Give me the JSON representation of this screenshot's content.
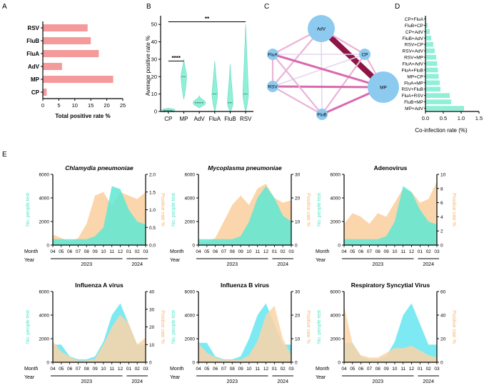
{
  "colors": {
    "bar": "#f59a9a",
    "violin": "#8ff0d8",
    "teal": "#5ee8d2",
    "orange": "#fbd3a7",
    "node": "#8dcaf0",
    "edgeStrong": "#8e1545",
    "edgeMid": "#d96aae",
    "edgeLight": "#ebb3d8",
    "edgeFaint": "#e4d6ee",
    "axis": "#000000"
  },
  "panels": {
    "A": "A",
    "B": "B",
    "C": "C",
    "D": "D",
    "E": "E"
  },
  "chart_data": [
    {
      "id": "A",
      "type": "bar",
      "orientation": "horizontal",
      "categories": [
        "RSV",
        "FluB",
        "FluA",
        "AdV",
        "MP",
        "CP"
      ],
      "values": [
        14,
        15,
        17.5,
        6,
        22,
        1.2
      ],
      "xlabel": "Total positive rate %",
      "xlim": [
        0,
        25
      ],
      "xticks": [
        "0",
        "5",
        "10",
        "15",
        "20",
        "25"
      ],
      "xtickValues": [
        0,
        5,
        10,
        15,
        20,
        25
      ]
    },
    {
      "id": "B",
      "type": "violin",
      "categories": [
        "CP",
        "MP",
        "AdV",
        "FluA",
        "FluB",
        "RSV"
      ],
      "ranges": [
        [
          0,
          2
        ],
        [
          7,
          30
        ],
        [
          2,
          9
        ],
        [
          0,
          29
        ],
        [
          0,
          27
        ],
        [
          0,
          50
        ]
      ],
      "medians": [
        0.5,
        20,
        5,
        10,
        5,
        10
      ],
      "ylabel": "Average positive rate %",
      "ylim": [
        0,
        55
      ],
      "yticks": [
        "0",
        "10",
        "20",
        "30",
        "40",
        "50"
      ],
      "ytickValues": [
        0,
        10,
        20,
        30,
        40,
        50
      ],
      "annotations": [
        {
          "label": "****",
          "from": "CP",
          "to": "MP"
        },
        {
          "label": "**",
          "from": "CP",
          "to": "RSV"
        }
      ]
    },
    {
      "id": "C",
      "type": "network",
      "nodes": [
        {
          "name": "AdV",
          "size": 3
        },
        {
          "name": "CP",
          "size": 1
        },
        {
          "name": "MP",
          "size": 4
        },
        {
          "name": "FluB",
          "size": 1
        },
        {
          "name": "RSV",
          "size": 1
        },
        {
          "name": "FluA",
          "size": 1
        }
      ],
      "edges": [
        {
          "from": "AdV",
          "to": "MP",
          "weight": 5
        },
        {
          "from": "AdV",
          "to": "CP",
          "weight": 2
        },
        {
          "from": "AdV",
          "to": "FluA",
          "weight": 2
        },
        {
          "from": "AdV",
          "to": "RSV",
          "weight": 2
        },
        {
          "from": "AdV",
          "to": "FluB",
          "weight": 1
        },
        {
          "from": "CP",
          "to": "MP",
          "weight": 2
        },
        {
          "from": "CP",
          "to": "FluA",
          "weight": 1
        },
        {
          "from": "CP",
          "to": "RSV",
          "weight": 1
        },
        {
          "from": "CP",
          "to": "FluB",
          "weight": 2
        },
        {
          "from": "MP",
          "to": "FluA",
          "weight": 3
        },
        {
          "from": "MP",
          "to": "RSV",
          "weight": 3
        },
        {
          "from": "MP",
          "to": "FluB",
          "weight": 3
        },
        {
          "from": "FluA",
          "to": "RSV",
          "weight": 2
        },
        {
          "from": "FluA",
          "to": "FluB",
          "weight": 2
        },
        {
          "from": "RSV",
          "to": "FluB",
          "weight": 2
        }
      ]
    },
    {
      "id": "D",
      "type": "bar",
      "orientation": "horizontal",
      "categories": [
        "CP+FluA",
        "FluB+CP",
        "CP+AdV",
        "FluB+AdV",
        "RSV+CP",
        "RSV+AdV",
        "RSV+MP",
        "FluA+AdV",
        "FluA+FluB",
        "MP+CP",
        "FluA+MP",
        "RSV+FluB",
        "FluA+RSV",
        "FluB+MP",
        "MP+AdV"
      ],
      "values": [
        0.02,
        0.06,
        0.12,
        0.16,
        0.22,
        0.26,
        0.3,
        0.33,
        0.35,
        0.37,
        0.4,
        0.42,
        0.68,
        0.72,
        1.08
      ],
      "xlabel": "Co-infection rate (%)",
      "xlim": [
        0,
        1.5
      ],
      "xticks": [
        "0.0",
        "0.5",
        "1.0",
        "1.5"
      ],
      "xtickValues": [
        0,
        0.5,
        1.0,
        1.5
      ]
    },
    {
      "id": "E",
      "type": "area",
      "months": [
        "04",
        "05",
        "06",
        "07",
        "08",
        "09",
        "10",
        "11",
        "12",
        "01",
        "02",
        "03"
      ],
      "years": [
        "2023",
        "2024"
      ],
      "monthLabel": "Month",
      "yearLabel": "Year",
      "ylabelLeft": "No. people test",
      "ylabelRight": "Positive rate %",
      "leftTicks": [
        "0",
        "2000",
        "4000",
        "6000"
      ],
      "leftTickValues": [
        0,
        2000,
        4000,
        6000
      ],
      "tests": [
        900,
        950,
        400,
        150,
        150,
        400,
        1900,
        4900,
        4500,
        2400,
        900,
        800
      ],
      "series": [
        {
          "name": "Chlamydia pneumoniae",
          "italic": true,
          "rmax": 2.0,
          "rticks": [
            "0.0",
            "0.5",
            "1.0",
            "1.5",
            "2.0"
          ],
          "rtickValues": [
            0,
            0.5,
            1.0,
            1.5,
            2.0
          ],
          "rate": [
            0.3,
            0.2,
            0.1,
            0.2,
            0.6,
            1.4,
            1.5,
            1.1,
            1.5,
            1.4,
            1.3,
            1.5
          ],
          "testScale": 1.0,
          "testShape": [
            0.1,
            0.1,
            0.1,
            0.1,
            0.1,
            0.15,
            0.3,
            1.0,
            0.95,
            0.6,
            0.4,
            0.35
          ],
          "order": "rate-back"
        },
        {
          "name": "Mycoplasma pneumoniae",
          "italic": true,
          "rmax": 30,
          "rticks": [
            "0",
            "10",
            "20",
            "30"
          ],
          "rtickValues": [
            0,
            10,
            20,
            30
          ],
          "rate": [
            1,
            1.5,
            3,
            10,
            17,
            21,
            17,
            24,
            26,
            20,
            18,
            19
          ],
          "testShape": [
            0.1,
            0.1,
            0.1,
            0.1,
            0.1,
            0.15,
            0.4,
            0.8,
            1.0,
            0.8,
            0.5,
            0.4
          ],
          "order": "rate-back"
        },
        {
          "name": "Adenovirus",
          "italic": false,
          "rmax": 10,
          "rticks": [
            "0",
            "2",
            "4",
            "6",
            "8",
            "10"
          ],
          "rtickValues": [
            0,
            2,
            4,
            6,
            8,
            10
          ],
          "rate": [
            3,
            4.5,
            4,
            3,
            4.5,
            4,
            6,
            8,
            7.5,
            6,
            6.5,
            9
          ],
          "testShape": [
            0.1,
            0.1,
            0.1,
            0.1,
            0.1,
            0.15,
            0.4,
            1.0,
            0.9,
            0.6,
            0.4,
            0.35
          ],
          "order": "rate-back"
        },
        {
          "name": "Influenza A virus",
          "italic": false,
          "rmax": 40,
          "rticks": [
            "0",
            "10",
            "20",
            "30",
            "40"
          ],
          "rtickValues": [
            0,
            10,
            20,
            30,
            40
          ],
          "rate": [
            12,
            6,
            3,
            1,
            1,
            2,
            10,
            20,
            27,
            22,
            10,
            14
          ],
          "testShape": [
            0.3,
            0.3,
            0.1,
            0.05,
            0.05,
            0.1,
            0.35,
            0.8,
            1.0,
            0.65,
            0.3,
            0.3
          ],
          "order": "test-back"
        },
        {
          "name": "Influenza B virus",
          "italic": false,
          "rmax": 30,
          "rticks": [
            "0",
            "10",
            "20",
            "30"
          ],
          "rtickValues": [
            0,
            10,
            20,
            30
          ],
          "rate": [
            8,
            4,
            2,
            1,
            1,
            1,
            3,
            9,
            20,
            24,
            10,
            3
          ],
          "testShape": [
            0.33,
            0.33,
            0.1,
            0.05,
            0.05,
            0.1,
            0.4,
            0.8,
            1.0,
            0.65,
            0.3,
            0.3
          ],
          "order": "test-back"
        },
        {
          "name": "Respiratory Syncytial Virus",
          "italic": false,
          "rmax": 60,
          "rticks": [
            "0",
            "20",
            "40",
            "60"
          ],
          "rtickValues": [
            0,
            20,
            40,
            60
          ],
          "rate": [
            48,
            16,
            6,
            4,
            4,
            8,
            12,
            12,
            14,
            10,
            6,
            4
          ],
          "testShape": [
            0.33,
            0.33,
            0.1,
            0.05,
            0.05,
            0.1,
            0.35,
            0.8,
            1.0,
            0.65,
            0.3,
            0.3
          ],
          "order": "test-back"
        }
      ]
    }
  ]
}
